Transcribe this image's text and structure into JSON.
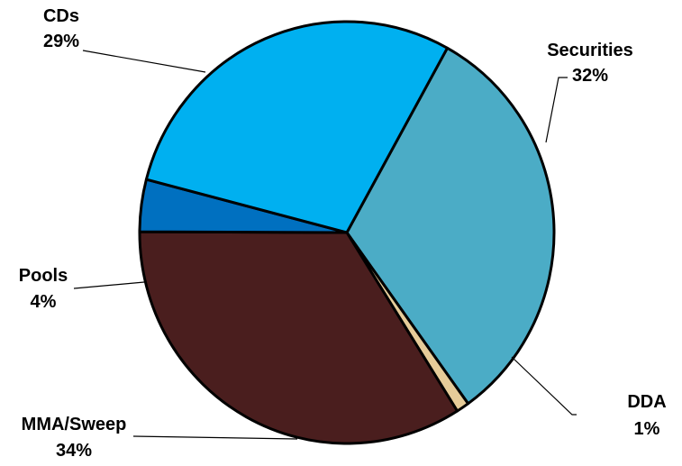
{
  "chart_data": {
    "type": "pie",
    "title": "",
    "slices": [
      {
        "label": "Securities",
        "percent_label": "32%",
        "value": 32,
        "color": "#4BACC6"
      },
      {
        "label": "DDA",
        "percent_label": "1%",
        "value": 1,
        "color": "#E6CC99"
      },
      {
        "label": "MMA/Sweep",
        "percent_label": "34%",
        "value": 34,
        "color": "#4A1E1E"
      },
      {
        "label": "Pools",
        "percent_label": "4%",
        "value": 4,
        "color": "#0070C0"
      },
      {
        "label": "CDs",
        "percent_label": "29%",
        "value": 29,
        "color": "#00B0F0"
      }
    ],
    "legend": "none",
    "labels": "outside with leader lines"
  }
}
